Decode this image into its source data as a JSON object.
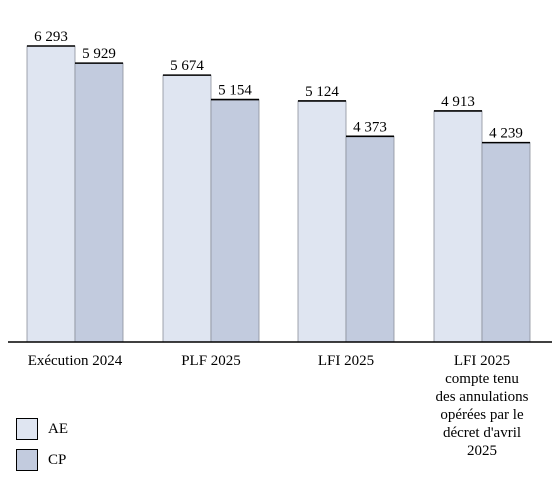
{
  "chart_data": {
    "type": "bar",
    "categories": [
      "Exécution 2024",
      "PLF 2025",
      "LFI 2025",
      "LFI 2025\ncompte tenu\ndes annulations\nopérées par le\ndécret d'avril\n2025"
    ],
    "series": [
      {
        "name": "AE",
        "values": [
          6293,
          5674,
          5124,
          4913
        ],
        "labels": [
          "6 293",
          "5 674",
          "5 124",
          "4 913"
        ]
      },
      {
        "name": "CP",
        "values": [
          5929,
          5154,
          4373,
          4239
        ],
        "labels": [
          "5 929",
          "5 154",
          "4 373",
          "4 239"
        ]
      }
    ],
    "ylim": [
      0,
      6500
    ],
    "grid": false,
    "legend_position": "bottom-left",
    "colors": {
      "AE": "#dfe5f1",
      "CP": "#c2cbde",
      "outline": "#000000"
    }
  }
}
